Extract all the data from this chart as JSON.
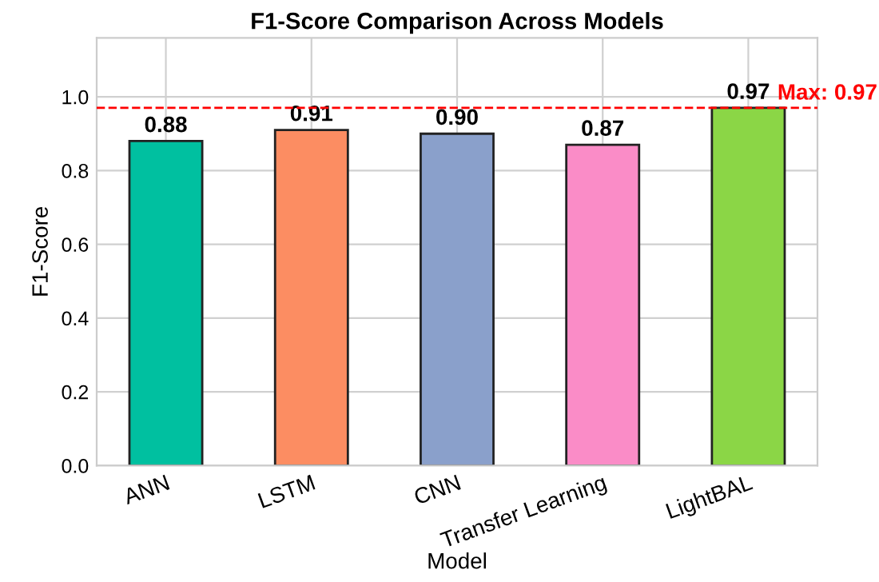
{
  "chart_data": {
    "type": "bar",
    "title": "F1-Score Comparison Across Models",
    "xlabel": "Model",
    "ylabel": "F1-Score",
    "categories": [
      "ANN",
      "LSTM",
      "CNN",
      "Transfer Learning",
      "LightBAL"
    ],
    "values": [
      0.88,
      0.91,
      0.9,
      0.87,
      0.97
    ],
    "colors": [
      "#00c0a0",
      "#fc8d62",
      "#8aa0cb",
      "#fa8cc7",
      "#8bd646"
    ],
    "value_labels": [
      "0.88",
      "0.91",
      "0.90",
      "0.87",
      "0.97"
    ],
    "ylim": [
      0,
      1.16
    ],
    "yticks": [
      {
        "value": 0,
        "label": "0.0"
      },
      0.2,
      0.4,
      0.6,
      0.8,
      {
        "value": 1,
        "label": "1.0"
      }
    ],
    "ref_lines": [
      {
        "axis": "y",
        "value": 0.97,
        "label": "Max: 0.97",
        "color": "#ff0000",
        "line_style": "dashed"
      }
    ],
    "grid": true
  }
}
